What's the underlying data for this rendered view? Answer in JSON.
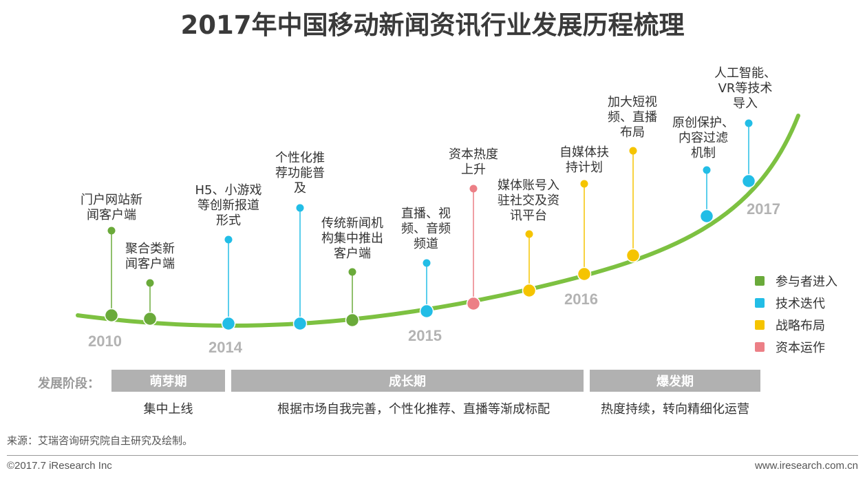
{
  "title": "2017年中国移动新闻资讯行业发展历程梳理",
  "colors": {
    "curve": "#7dc141",
    "entrant": "#6aaa3a",
    "tech": "#22bde6",
    "strategy": "#f5c400",
    "capital": "#ec7f86",
    "year_text": "#b3b3b3",
    "stage_bar": "#b1b1b1"
  },
  "years": [
    "2010",
    "2014",
    "2015",
    "2016",
    "2017"
  ],
  "events": [
    {
      "label": "门户网站新\n闻客户端",
      "category": "entrant"
    },
    {
      "label": "聚合类新\n闻客户端",
      "category": "entrant"
    },
    {
      "label": "H5、小游戏\n等创新报道\n形式",
      "category": "tech"
    },
    {
      "label": "个性化推\n荐功能普\n及",
      "category": "tech"
    },
    {
      "label": "传统新闻机\n构集中推出\n客户端",
      "category": "entrant"
    },
    {
      "label": "直播、视\n频、音频\n频道",
      "category": "tech"
    },
    {
      "label": "资本热度\n上升",
      "category": "capital"
    },
    {
      "label": "媒体账号入\n驻社交及资\n讯平台",
      "category": "strategy"
    },
    {
      "label": "自媒体扶\n持计划",
      "category": "strategy"
    },
    {
      "label": "加大短视\n频、直播\n布局",
      "category": "strategy"
    },
    {
      "label": "原创保护、\n内容过滤\n机制",
      "category": "tech"
    },
    {
      "label": "人工智能、\nVR等技术\n导入",
      "category": "tech"
    }
  ],
  "legend": [
    {
      "key": "entrant",
      "label": "参与者进入"
    },
    {
      "key": "tech",
      "label": "技术迭代"
    },
    {
      "key": "strategy",
      "label": "战略布局"
    },
    {
      "key": "capital",
      "label": "资本运作"
    }
  ],
  "stage_label": "发展阶段：",
  "stages": [
    {
      "name": "萌芽期",
      "desc": "集中上线"
    },
    {
      "name": "成长期",
      "desc": "根据市场自我完善，个性化推荐、直播等渐成标配"
    },
    {
      "name": "爆发期",
      "desc": "热度持续，转向精细化运营"
    }
  ],
  "source": "来源：艾瑞咨询研究院自主研究及绘制。",
  "copyright": "©2017.7 iResearch Inc",
  "website": "www.iresearch.com.cn"
}
